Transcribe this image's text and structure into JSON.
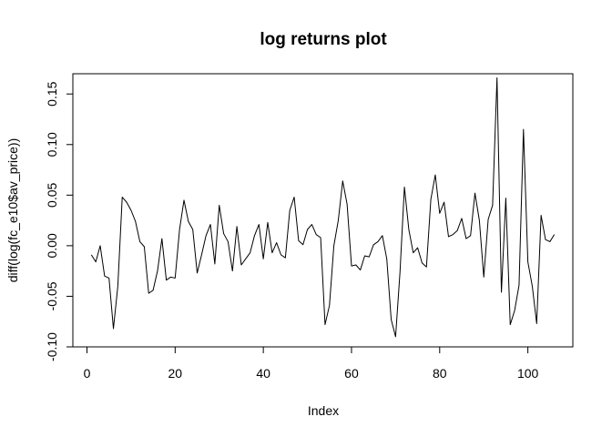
{
  "chart_data": {
    "type": "line",
    "title": "log returns plot",
    "xlabel": "Index",
    "ylabel": "diff(log(fc_e10$av_price))",
    "xlim": [
      1,
      106
    ],
    "ylim": [
      -0.1,
      0.17
    ],
    "grid": false,
    "x_ticks": [
      0,
      20,
      40,
      60,
      80,
      100
    ],
    "x_tick_labels": [
      "0",
      "20",
      "40",
      "60",
      "80",
      "100"
    ],
    "y_ticks": [
      -0.1,
      -0.05,
      0.0,
      0.05,
      0.1,
      0.15
    ],
    "y_tick_labels": [
      "-0.10",
      "-0.05",
      "0.00",
      "0.05",
      "0.10",
      "0.15"
    ],
    "series": [
      {
        "color": "#000000",
        "x": [
          1,
          2,
          3,
          4,
          5,
          6,
          7,
          8,
          9,
          10,
          11,
          12,
          13,
          14,
          15,
          16,
          17,
          18,
          19,
          20,
          21,
          22,
          23,
          24,
          25,
          26,
          27,
          28,
          29,
          30,
          31,
          32,
          33,
          34,
          35,
          36,
          37,
          38,
          39,
          40,
          41,
          42,
          43,
          44,
          45,
          46,
          47,
          48,
          49,
          50,
          51,
          52,
          53,
          54,
          55,
          56,
          57,
          58,
          59,
          60,
          61,
          62,
          63,
          64,
          65,
          66,
          67,
          68,
          69,
          70,
          71,
          72,
          73,
          74,
          75,
          76,
          77,
          78,
          79,
          80,
          81,
          82,
          83,
          84,
          85,
          86,
          87,
          88,
          89,
          90,
          91,
          92,
          93,
          94,
          95,
          96,
          97,
          98,
          99,
          100,
          101,
          102,
          103,
          104,
          105,
          106
        ],
        "y": [
          -0.009,
          -0.016,
          0.0,
          -0.03,
          -0.032,
          -0.082,
          -0.04,
          0.048,
          0.043,
          0.035,
          0.024,
          0.004,
          -0.001,
          -0.047,
          -0.044,
          -0.025,
          0.007,
          -0.034,
          -0.031,
          -0.032,
          0.016,
          0.045,
          0.024,
          0.016,
          -0.027,
          -0.009,
          0.01,
          0.021,
          -0.018,
          0.04,
          0.012,
          0.004,
          -0.025,
          0.019,
          -0.019,
          -0.013,
          -0.007,
          0.01,
          0.021,
          -0.013,
          0.023,
          -0.007,
          0.003,
          -0.009,
          -0.012,
          0.035,
          0.048,
          0.005,
          0.001,
          0.016,
          0.021,
          0.011,
          0.008,
          -0.078,
          -0.059,
          0.0,
          0.025,
          0.064,
          0.041,
          -0.02,
          -0.019,
          -0.024,
          -0.01,
          -0.011,
          0.001,
          0.004,
          0.01,
          -0.013,
          -0.073,
          -0.09,
          -0.026,
          0.058,
          0.016,
          -0.007,
          -0.002,
          -0.017,
          -0.021,
          0.046,
          0.07,
          0.032,
          0.043,
          0.009,
          0.011,
          0.015,
          0.027,
          0.007,
          0.01,
          0.052,
          0.025,
          -0.031,
          0.026,
          0.04,
          0.166,
          -0.046,
          0.047,
          -0.078,
          -0.064,
          -0.039,
          0.115,
          -0.016,
          -0.04,
          -0.077,
          0.03,
          0.006,
          0.004,
          0.011
        ]
      }
    ]
  }
}
